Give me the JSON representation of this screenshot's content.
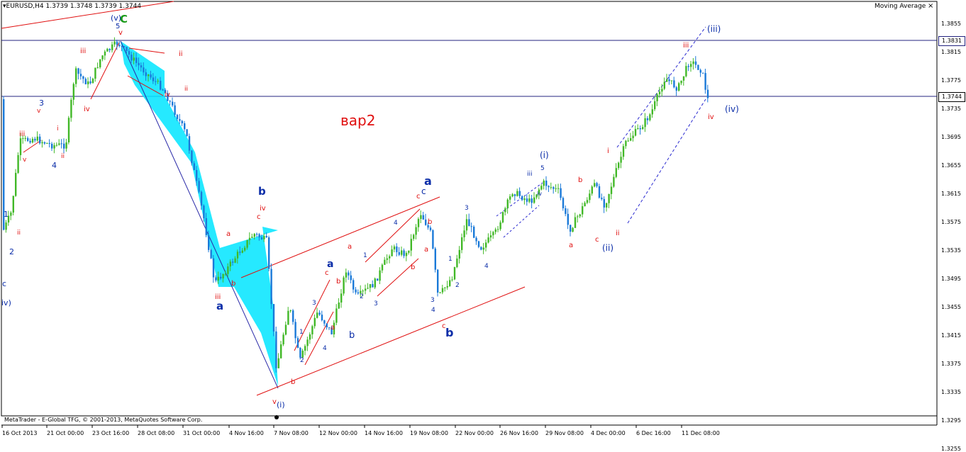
{
  "header": {
    "symbol_line": "EURUSD,H4  1.3739 1.3748 1.3739 1.3744"
  },
  "indicator": {
    "label": "Moving Average",
    "close": "×"
  },
  "footer": {
    "copyright": "MetaTrader - E-Global TFG, © 2001-2013, MetaQuotes Software Corp."
  },
  "annotation": {
    "text": "вар2"
  },
  "price_axis": {
    "ticks": [
      "1.3855",
      "1.3815",
      "1.3775",
      "1.3735",
      "1.3695",
      "1.3655",
      "1.3615",
      "1.3575",
      "1.3535",
      "1.3495",
      "1.3455",
      "1.3415",
      "1.3375",
      "1.3335",
      "1.3295",
      "1.3255"
    ],
    "level_high": "1.3831",
    "level_current": "1.3744"
  },
  "time_axis": {
    "labels": [
      "16 Oct 2013",
      "21 Oct 00:00",
      "23 Oct 16:00",
      "28 Oct 08:00",
      "31 Oct 00:00",
      "4 Nov 16:00",
      "7 Nov 08:00",
      "12 Nov 00:00",
      "14 Nov 16:00",
      "19 Nov 08:00",
      "22 Nov 00:00",
      "26 Nov 16:00",
      "29 Nov 08:00",
      "4 Dec 00:00",
      "6 Dec 16:00",
      "11 Dec 08:00"
    ]
  },
  "colors": {
    "bull": "#41b827",
    "bear": "#1a79d8",
    "channel": "#e01010",
    "wave_blue": "#0b2da8",
    "level_line": "#23237f",
    "fill": "#00e5ff"
  },
  "wave_labels": [
    {
      "t": "C",
      "c": "#1a9a1a",
      "s": 15
    },
    {
      "t": "(v)",
      "c": "#0b2da8",
      "s": 11
    },
    {
      "t": "5",
      "c": "#0b2da8",
      "s": 10
    },
    {
      "t": "v",
      "c": "#e01010",
      "s": 10
    },
    {
      "t": "3",
      "c": "#0b2da8",
      "s": 11
    },
    {
      "t": "v",
      "c": "#e01010",
      "s": 9
    },
    {
      "t": "iii",
      "c": "#e01010",
      "s": 10
    },
    {
      "t": "v",
      "c": "#e01010",
      "s": 9
    },
    {
      "t": "i",
      "c": "#e01010",
      "s": 9
    },
    {
      "t": "ii",
      "c": "#e01010",
      "s": 9
    },
    {
      "t": "4",
      "c": "#0b2da8",
      "s": 11
    },
    {
      "t": "iii",
      "c": "#e01010",
      "s": 10
    },
    {
      "t": "iv",
      "c": "#e01010",
      "s": 10
    },
    {
      "t": "ii",
      "c": "#e01010",
      "s": 10
    },
    {
      "t": "1",
      "c": "#0b2da8",
      "s": 11
    },
    {
      "t": "ii",
      "c": "#e01010",
      "s": 9
    },
    {
      "t": "2",
      "c": "#0b2da8",
      "s": 11
    },
    {
      "t": "c",
      "c": "#0b2da8",
      "s": 11
    },
    {
      "t": "iv)",
      "c": "#0b2da8",
      "s": 11
    },
    {
      "t": "iv",
      "c": "#e01010",
      "s": 9
    },
    {
      "t": "ii",
      "c": "#e01010",
      "s": 9
    },
    {
      "t": "iii",
      "c": "#e01010",
      "s": 10
    },
    {
      "t": "a",
      "c": "#0b2da8",
      "s": 15
    },
    {
      "t": "b",
      "c": "#0b2da8",
      "s": 15
    },
    {
      "t": "iv",
      "c": "#e01010",
      "s": 10
    },
    {
      "t": "c",
      "c": "#e01010",
      "s": 10
    },
    {
      "t": "b",
      "c": "#e01010",
      "s": 10
    },
    {
      "t": "a",
      "c": "#e01010",
      "s": 10
    },
    {
      "t": "b",
      "c": "#e01010",
      "s": 10
    },
    {
      "t": "v",
      "c": "#e01010",
      "s": 10
    },
    {
      "t": "(i)",
      "c": "#0b2da8",
      "s": 11
    },
    {
      "t": "3",
      "c": "#0b2da8",
      "s": 9
    },
    {
      "t": "1",
      "c": "#0b2da8",
      "s": 9
    },
    {
      "t": "2",
      "c": "#0b2da8",
      "s": 9
    },
    {
      "t": "4",
      "c": "#0b2da8",
      "s": 9
    },
    {
      "t": "a",
      "c": "#0b2da8",
      "s": 14
    },
    {
      "t": "a",
      "c": "#e01010",
      "s": 10
    },
    {
      "t": "c",
      "c": "#e01010",
      "s": 10
    },
    {
      "t": "b",
      "c": "#e01010",
      "s": 10
    },
    {
      "t": "a",
      "c": "#e01010",
      "s": 10
    },
    {
      "t": "b",
      "c": "#0b2da8",
      "s": 13
    },
    {
      "t": "1",
      "c": "#0b2da8",
      "s": 9
    },
    {
      "t": "2",
      "c": "#0b2da8",
      "s": 9
    },
    {
      "t": "3",
      "c": "#0b2da8",
      "s": 9
    },
    {
      "t": "4",
      "c": "#0b2da8",
      "s": 9
    },
    {
      "t": "b",
      "c": "#e01010",
      "s": 10
    },
    {
      "t": "a",
      "c": "#0b2da8",
      "s": 16
    },
    {
      "t": "c",
      "c": "#0b2da8",
      "s": 12
    },
    {
      "t": "c",
      "c": "#e01010",
      "s": 10
    },
    {
      "t": "b",
      "c": "#e01010",
      "s": 10
    },
    {
      "t": "a",
      "c": "#e01010",
      "s": 10
    },
    {
      "t": "1",
      "c": "#0b2da8",
      "s": 9
    },
    {
      "t": "2",
      "c": "#0b2da8",
      "s": 9
    },
    {
      "t": "3",
      "c": "#0b2da8",
      "s": 9
    },
    {
      "t": "4",
      "c": "#0b2da8",
      "s": 9
    },
    {
      "t": "c",
      "c": "#e01010",
      "s": 10
    },
    {
      "t": "b",
      "c": "#0b2da8",
      "s": 16
    },
    {
      "t": "3",
      "c": "#0b2da8",
      "s": 9
    },
    {
      "t": "4",
      "c": "#0b2da8",
      "s": 9
    },
    {
      "t": "(i)",
      "c": "#0b2da8",
      "s": 12
    },
    {
      "t": "iii",
      "c": "#0b2da8",
      "s": 9
    },
    {
      "t": "5",
      "c": "#0b2da8",
      "s": 9
    },
    {
      "t": "iv",
      "c": "#0b2da8",
      "s": 8
    },
    {
      "t": "a",
      "c": "#e01010",
      "s": 10
    },
    {
      "t": "b",
      "c": "#e01010",
      "s": 10
    },
    {
      "t": "c",
      "c": "#e01010",
      "s": 10
    },
    {
      "t": "(ii)",
      "c": "#0b2da8",
      "s": 12
    },
    {
      "t": "ii",
      "c": "#e01010",
      "s": 10
    },
    {
      "t": "i",
      "c": "#e01010",
      "s": 10
    },
    {
      "t": "iii",
      "c": "#e01010",
      "s": 10
    },
    {
      "t": "(iii)",
      "c": "#0b2da8",
      "s": 12
    },
    {
      "t": "(iv)",
      "c": "#0b2da8",
      "s": 12
    },
    {
      "t": "iv",
      "c": "#e01010",
      "s": 10
    }
  ]
}
